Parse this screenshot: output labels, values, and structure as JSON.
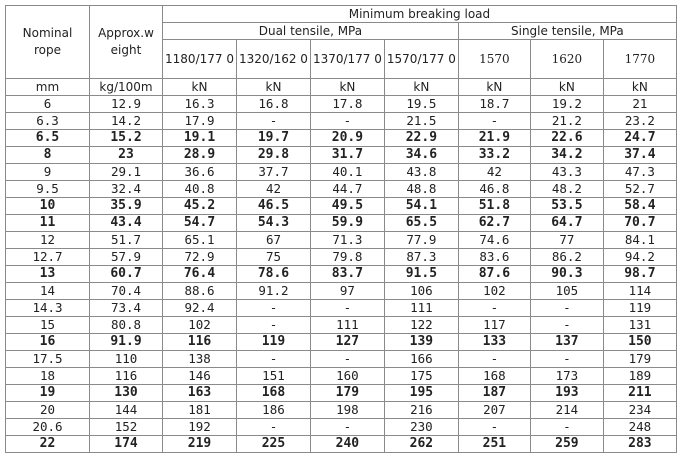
{
  "header": {
    "nominal_rope": "Nominal rope",
    "approx_weight": "Approx.w eight",
    "min_breaking_load": "Minimum breaking load",
    "dual_tensile": "Dual tensile, MPa",
    "single_tensile": "Single tensile, MPa",
    "dual_grades": [
      "1180/177 0",
      "1320/162 0",
      "1370/177 0",
      "1570/177 0"
    ],
    "single_grades": [
      "1570",
      "1620",
      "1770"
    ]
  },
  "units": [
    "mm",
    "kg/100m",
    "kN",
    "kN",
    "kN",
    "kN",
    "kN",
    "kN",
    "kN"
  ],
  "rows": [
    {
      "bold": false,
      "cells": [
        "6",
        "12.9",
        "16.3",
        "16.8",
        "17.8",
        "19.5",
        "18.7",
        "19.2",
        "21"
      ]
    },
    {
      "bold": false,
      "cells": [
        "6.3",
        "14.2",
        "17.9",
        "-",
        "-",
        "21.5",
        "-",
        "21.2",
        "23.2"
      ]
    },
    {
      "bold": true,
      "cells": [
        "6.5",
        "15.2",
        "19.1",
        "19.7",
        "20.9",
        "22.9",
        "21.9",
        "22.6",
        "24.7"
      ]
    },
    {
      "bold": true,
      "cells": [
        "8",
        "23",
        "28.9",
        "29.8",
        "31.7",
        "34.6",
        "33.2",
        "34.2",
        "37.4"
      ]
    },
    {
      "bold": false,
      "cells": [
        "9",
        "29.1",
        "36.6",
        "37.7",
        "40.1",
        "43.8",
        "42",
        "43.3",
        "47.3"
      ]
    },
    {
      "bold": false,
      "cells": [
        "9.5",
        "32.4",
        "40.8",
        "42",
        "44.7",
        "48.8",
        "46.8",
        "48.2",
        "52.7"
      ]
    },
    {
      "bold": true,
      "cells": [
        "10",
        "35.9",
        "45.2",
        "46.5",
        "49.5",
        "54.1",
        "51.8",
        "53.5",
        "58.4"
      ]
    },
    {
      "bold": true,
      "cells": [
        "11",
        "43.4",
        "54.7",
        "54.3",
        "59.9",
        "65.5",
        "62.7",
        "64.7",
        "70.7"
      ]
    },
    {
      "bold": false,
      "cells": [
        "12",
        "51.7",
        "65.1",
        "67",
        "71.3",
        "77.9",
        "74.6",
        "77",
        "84.1"
      ]
    },
    {
      "bold": false,
      "cells": [
        "12.7",
        "57.9",
        "72.9",
        "75",
        "79.8",
        "87.3",
        "83.6",
        "86.2",
        "94.2"
      ]
    },
    {
      "bold": true,
      "cells": [
        "13",
        "60.7",
        "76.4",
        "78.6",
        "83.7",
        "91.5",
        "87.6",
        "90.3",
        "98.7"
      ]
    },
    {
      "bold": false,
      "cells": [
        "14",
        "70.4",
        "88.6",
        "91.2",
        "97",
        "106",
        "102",
        "105",
        "114"
      ]
    },
    {
      "bold": false,
      "cells": [
        "14.3",
        "73.4",
        "92.4",
        "-",
        "-",
        "111",
        "-",
        "-",
        "119"
      ]
    },
    {
      "bold": false,
      "cells": [
        "15",
        "80.8",
        "102",
        "-",
        "111",
        "122",
        "117",
        "-",
        "131"
      ]
    },
    {
      "bold": true,
      "cells": [
        "16",
        "91.9",
        "116",
        "119",
        "127",
        "139",
        "133",
        "137",
        "150"
      ]
    },
    {
      "bold": false,
      "cells": [
        "17.5",
        "110",
        "138",
        "-",
        "-",
        "166",
        "-",
        "-",
        "179"
      ]
    },
    {
      "bold": false,
      "cells": [
        "18",
        "116",
        "146",
        "151",
        "160",
        "175",
        "168",
        "173",
        "189"
      ]
    },
    {
      "bold": true,
      "cells": [
        "19",
        "130",
        "163",
        "168",
        "179",
        "195",
        "187",
        "193",
        "211"
      ]
    },
    {
      "bold": false,
      "cells": [
        "20",
        "144",
        "181",
        "186",
        "198",
        "216",
        "207",
        "214",
        "234"
      ]
    },
    {
      "bold": false,
      "cells": [
        "20.6",
        "152",
        "192",
        "-",
        "-",
        "230",
        "-",
        "-",
        "248"
      ]
    },
    {
      "bold": true,
      "cells": [
        "22",
        "174",
        "219",
        "225",
        "240",
        "262",
        "251",
        "259",
        "283"
      ]
    }
  ]
}
